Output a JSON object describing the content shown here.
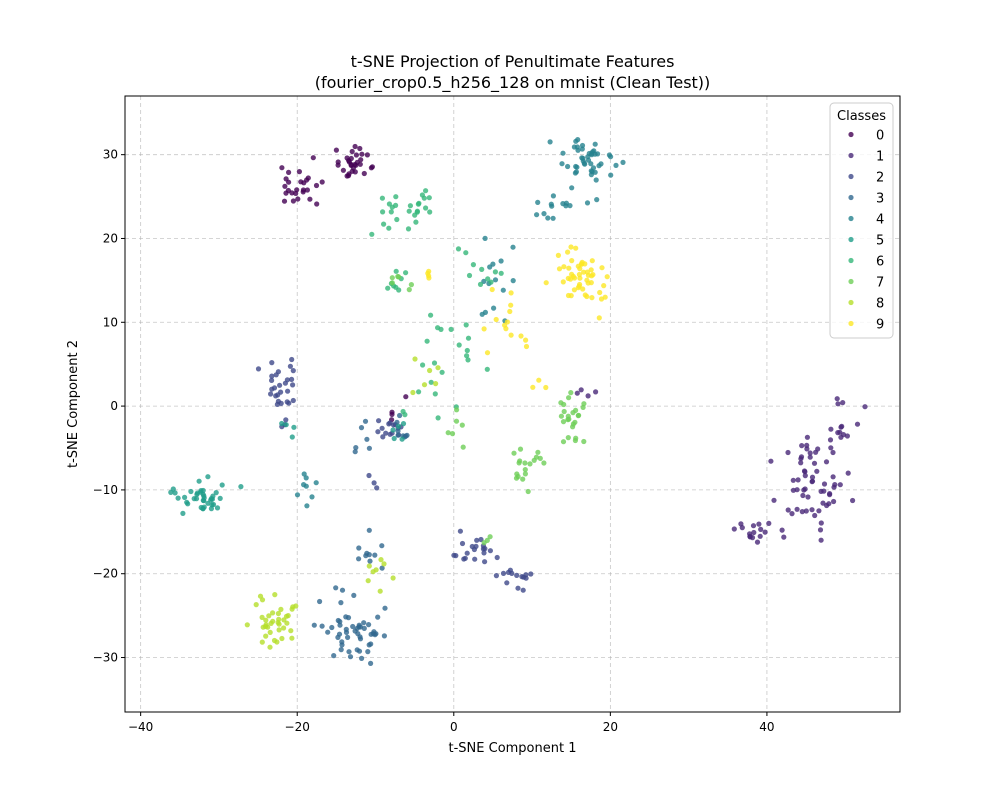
{
  "chart_data": {
    "type": "scatter",
    "title": "t-SNE Projection of Penultimate Features",
    "subtitle": "(fourier_crop0.5_h256_128 on mnist (Clean Test))",
    "xlabel": "t-SNE Component 1",
    "ylabel": "t-SNE Component 2",
    "xlim": [
      -42,
      57
    ],
    "ylim": [
      -36.5,
      37
    ],
    "xticks": [
      -40,
      -20,
      0,
      20,
      40
    ],
    "yticks": [
      -30,
      -20,
      -10,
      0,
      10,
      20,
      30
    ],
    "grid": true,
    "legend": {
      "title": "Classes",
      "position": "top-right"
    },
    "colormap": "viridis",
    "series": [
      {
        "name": "0",
        "color": "#440154",
        "clusters": [
          {
            "center": [
              -20,
              26
            ],
            "spread": [
              2.2,
              2.5
            ],
            "count": 26
          },
          {
            "center": [
              -13,
              29
            ],
            "spread": [
              2.8,
              1.8
            ],
            "count": 30
          },
          {
            "center": [
              -8,
              0
            ],
            "spread": [
              2,
              2
            ],
            "count": 4
          }
        ]
      },
      {
        "name": "1",
        "color": "#482878",
        "clusters": [
          {
            "center": [
              46,
              -9
            ],
            "spread": [
              3.5,
              4.5
            ],
            "count": 60
          },
          {
            "center": [
              49,
              -2
            ],
            "spread": [
              2,
              2.5
            ],
            "count": 14
          },
          {
            "center": [
              38,
              -15
            ],
            "spread": [
              3,
              0.9
            ],
            "count": 16
          },
          {
            "center": [
              17,
              1.5
            ],
            "spread": [
              1.5,
              0.6
            ],
            "count": 4
          }
        ]
      },
      {
        "name": "2",
        "color": "#3e4989",
        "clusters": [
          {
            "center": [
              -22,
              2
            ],
            "spread": [
              2,
              3
            ],
            "count": 30
          },
          {
            "center": [
              2,
              -17
            ],
            "spread": [
              3,
              1.5
            ],
            "count": 20
          },
          {
            "center": [
              8,
              -20.5
            ],
            "spread": [
              2.5,
              1.3
            ],
            "count": 14
          },
          {
            "center": [
              -8,
              -2.5
            ],
            "spread": [
              1.3,
              1.2
            ],
            "count": 14
          },
          {
            "center": [
              -10,
              -9
            ],
            "spread": [
              1,
              1
            ],
            "count": 3
          }
        ]
      },
      {
        "name": "3",
        "color": "#31688e",
        "clusters": [
          {
            "center": [
              -13,
              -27
            ],
            "spread": [
              3.2,
              3.2
            ],
            "count": 52
          },
          {
            "center": [
              -11,
              -18
            ],
            "spread": [
              2,
              2
            ],
            "count": 10
          },
          {
            "center": [
              -12,
              -4
            ],
            "spread": [
              2,
              2
            ],
            "count": 6
          },
          {
            "center": [
              -7,
              -3
            ],
            "spread": [
              1.2,
              1.2
            ],
            "count": 8
          }
        ]
      },
      {
        "name": "4",
        "color": "#26828e",
        "clusters": [
          {
            "center": [
              17,
              29
            ],
            "spread": [
              3,
              2.5
            ],
            "count": 45
          },
          {
            "center": [
              13,
              24
            ],
            "spread": [
              3,
              2
            ],
            "count": 14
          },
          {
            "center": [
              5,
              15
            ],
            "spread": [
              2.5,
              4
            ],
            "count": 14
          },
          {
            "center": [
              -19,
              -10
            ],
            "spread": [
              1.5,
              2
            ],
            "count": 8
          }
        ]
      },
      {
        "name": "5",
        "color": "#1f9e89",
        "clusters": [
          {
            "center": [
              -32,
              -11
            ],
            "spread": [
              3.5,
              1.8
            ],
            "count": 40
          },
          {
            "center": [
              -21,
              -2
            ],
            "spread": [
              1.5,
              1.5
            ],
            "count": 4
          },
          {
            "center": [
              -7,
              -2.5
            ],
            "spread": [
              1,
              1
            ],
            "count": 5
          }
        ]
      },
      {
        "name": "6",
        "color": "#35b779",
        "clusters": [
          {
            "center": [
              -6,
              23
            ],
            "spread": [
              3.5,
              2
            ],
            "count": 26
          },
          {
            "center": [
              -7,
              15
            ],
            "spread": [
              1.5,
              1.5
            ],
            "count": 8
          },
          {
            "center": [
              0,
              8
            ],
            "spread": [
              3,
              3
            ],
            "count": 14
          },
          {
            "center": [
              3,
              16
            ],
            "spread": [
              3,
              3
            ],
            "count": 10
          },
          {
            "center": [
              -3,
              1.5
            ],
            "spread": [
              3,
              3
            ],
            "count": 8
          }
        ]
      },
      {
        "name": "7",
        "color": "#6ece58",
        "clusters": [
          {
            "center": [
              15,
              -1
            ],
            "spread": [
              2,
              3
            ],
            "count": 24
          },
          {
            "center": [
              9,
              -7
            ],
            "spread": [
              1.8,
              2.2
            ],
            "count": 18
          },
          {
            "center": [
              0,
              -2
            ],
            "spread": [
              1.5,
              2.5
            ],
            "count": 6
          },
          {
            "center": [
              -7,
              15
            ],
            "spread": [
              1.5,
              1.5
            ],
            "count": 6
          },
          {
            "center": [
              4,
              -16
            ],
            "spread": [
              1.5,
              1
            ],
            "count": 3
          }
        ]
      },
      {
        "name": "8",
        "color": "#b5de2b",
        "clusters": [
          {
            "center": [
              -23,
              -26
            ],
            "spread": [
              2.5,
              3
            ],
            "count": 38
          },
          {
            "center": [
              -10,
              -19.5
            ],
            "spread": [
              1.5,
              1.5
            ],
            "count": 8
          },
          {
            "center": [
              -2.5,
              4
            ],
            "spread": [
              2,
              2
            ],
            "count": 6
          }
        ]
      },
      {
        "name": "9",
        "color": "#fde725",
        "clusters": [
          {
            "center": [
              16,
              15
            ],
            "spread": [
              3.5,
              3
            ],
            "count": 50
          },
          {
            "center": [
              7,
              10
            ],
            "spread": [
              2.5,
              2.5
            ],
            "count": 14
          },
          {
            "center": [
              11,
              3
            ],
            "spread": [
              1,
              1
            ],
            "count": 3
          },
          {
            "center": [
              -3,
              16
            ],
            "spread": [
              1,
              1
            ],
            "count": 4
          }
        ]
      }
    ]
  }
}
